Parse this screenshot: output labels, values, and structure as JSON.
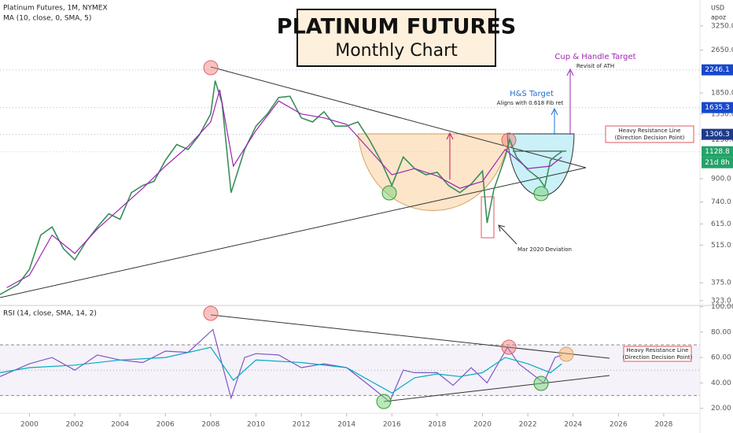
{
  "chart_data": [
    {
      "type": "line",
      "title": "PLATINUM FUTURES",
      "subtitle": "Monthly Chart",
      "currency": "USD",
      "user": "apoz",
      "log_scale": true,
      "xlim": [
        1998.7,
        2029.6
      ],
      "xticks": [
        2000,
        2002,
        2004,
        2006,
        2008,
        2010,
        2012,
        2014,
        2016,
        2018,
        2020,
        2022,
        2024,
        2026,
        2028
      ],
      "ylim": [
        310,
        4040
      ],
      "yticks": [
        {
          "value": 323,
          "label": "323.0"
        },
        {
          "value": 375,
          "label": "375.0"
        },
        {
          "value": 515,
          "label": "515.0"
        },
        {
          "value": 615,
          "label": "615.0"
        },
        {
          "value": 740,
          "label": "740.0"
        },
        {
          "value": 900,
          "label": "900.0"
        },
        {
          "value": 1250,
          "label": "1250.0"
        },
        {
          "value": 1550,
          "label": "1550.0"
        },
        {
          "value": 1850,
          "label": "1850.0"
        },
        {
          "value": 2650,
          "label": "2650.0"
        },
        {
          "value": 3250,
          "label": "3250.0"
        }
      ],
      "series": [
        {
          "name": "Platinum Futures, 1M, NYMEX",
          "color": "#3a8f5a",
          "x": [
            1998.7,
            1999.5,
            2000.0,
            2000.5,
            2001.0,
            2001.5,
            2002.0,
            2002.5,
            2003.0,
            2003.5,
            2004.0,
            2004.5,
            2005.0,
            2005.5,
            2006.0,
            2006.5,
            2007.0,
            2007.5,
            2008.0,
            2008.2,
            2008.5,
            2008.9,
            2009.5,
            2010.0,
            2010.5,
            2011.0,
            2011.5,
            2012.0,
            2012.5,
            2013.0,
            2013.5,
            2014.0,
            2014.5,
            2015.0,
            2015.5,
            2016.0,
            2016.5,
            2017.0,
            2017.5,
            2018.0,
            2018.5,
            2019.0,
            2019.5,
            2020.0,
            2020.2,
            2020.5,
            2021.0,
            2021.2,
            2021.5,
            2022.0,
            2022.5,
            2022.75,
            2023.0,
            2023.3,
            2023.5
          ],
          "values": [
            340,
            370,
            420,
            560,
            600,
            500,
            455,
            530,
            600,
            670,
            640,
            800,
            850,
            880,
            1050,
            1200,
            1150,
            1300,
            1550,
            2050,
            1700,
            800,
            1150,
            1400,
            1550,
            1780,
            1800,
            1500,
            1450,
            1580,
            1400,
            1400,
            1450,
            1250,
            1050,
            850,
            1080,
            980,
            930,
            950,
            850,
            800,
            860,
            960,
            620,
            820,
            1080,
            1250,
            1080,
            970,
            900,
            840,
            1050,
            1100,
            1128.8
          ]
        },
        {
          "name": "MA (10, close, 0, SMA, 5)",
          "color": "#9c27b0",
          "x": [
            1999,
            2000,
            2001,
            2002,
            2003,
            2004,
            2005,
            2006,
            2007,
            2008,
            2008.4,
            2009,
            2010,
            2011,
            2012,
            2013,
            2014,
            2015,
            2016,
            2017,
            2018,
            2019,
            2020,
            2021,
            2022,
            2023,
            2023.5
          ],
          "values": [
            360,
            400,
            560,
            480,
            590,
            700,
            830,
            1000,
            1180,
            1450,
            1900,
            1000,
            1350,
            1730,
            1550,
            1500,
            1420,
            1150,
            930,
            980,
            920,
            830,
            880,
            1150,
            980,
            1000,
            1080
          ]
        }
      ],
      "markers": [
        {
          "value": 2246.1,
          "color": "#1848cc"
        },
        {
          "value": 1635.3,
          "color": "#1848cc"
        },
        {
          "value": 1306.3,
          "color": "#1e3a8a"
        },
        {
          "value": 1128.8,
          "color": "#26a269",
          "countdown": "21d 8h"
        }
      ],
      "annotations": {
        "cup_target": "Cup & Handle Target",
        "ath": "Revisit of ATH",
        "hs_target": "H&S Target",
        "fib": "Aligns with 0.618 Fib ret",
        "resistance": "Heavy Resistance Line",
        "resistance_sub": "(Direction Decision Point)",
        "deviation": "Mar 2020 Deviation"
      }
    },
    {
      "type": "line",
      "xlim": [
        1998.7,
        2029.6
      ],
      "ylim": [
        16,
        101
      ],
      "yticks": [
        {
          "value": 20,
          "label": "20.00"
        },
        {
          "value": 40,
          "label": "40.00"
        },
        {
          "value": 60,
          "label": "60.00"
        },
        {
          "value": 80,
          "label": "80.00"
        },
        {
          "value": 100,
          "label": "100.00"
        }
      ],
      "band": [
        30,
        70
      ],
      "midline": 50,
      "series": [
        {
          "name": "RSI (14, close, SMA, 14, 2)",
          "color": "#7e57c2",
          "x": [
            1998.7,
            2000,
            2001,
            2002,
            2003,
            2004,
            2005,
            2006,
            2007,
            2008.1,
            2008.9,
            2009.5,
            2010,
            2011,
            2012,
            2013,
            2014,
            2015,
            2015.9,
            2016.5,
            2017,
            2018,
            2018.7,
            2019.5,
            2020.2,
            2021.1,
            2021.6,
            2022.7,
            2023.2,
            2023.5
          ],
          "values": [
            45,
            55,
            60,
            50,
            62,
            58,
            56,
            65,
            64,
            82,
            28,
            60,
            63,
            62,
            52,
            55,
            52,
            38,
            25,
            50,
            48,
            48,
            38,
            52,
            40,
            68,
            55,
            40,
            60,
            62
          ]
        },
        {
          "color": "#00acc1",
          "x": [
            1998.7,
            2000,
            2002,
            2004,
            2006,
            2008,
            2009,
            2010,
            2012,
            2014,
            2015,
            2016,
            2017,
            2018,
            2019,
            2020,
            2021,
            2022,
            2023,
            2023.5
          ],
          "values": [
            48,
            52,
            54,
            58,
            60,
            68,
            42,
            58,
            56,
            52,
            42,
            32,
            44,
            47,
            45,
            48,
            60,
            55,
            48,
            55
          ]
        }
      ],
      "annotations": {
        "resistance": "Heavy Resistance Line",
        "resistance_sub": "(Direction Decision Point)"
      }
    }
  ]
}
